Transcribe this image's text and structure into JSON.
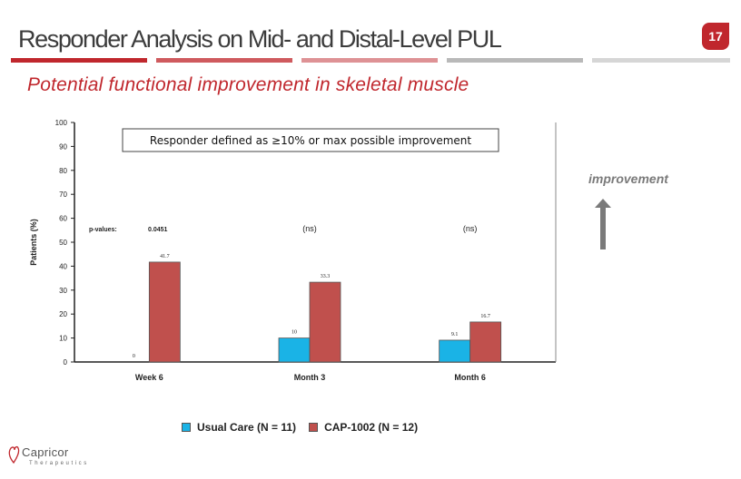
{
  "slide": {
    "title": "Responder Analysis on Mid- and Distal-Level PUL",
    "page_number": "17",
    "subtitle": "Potential functional improvement in skeletal muscle",
    "improvement_label": "improvement",
    "accent_color": "#c0272d"
  },
  "chart_data": {
    "type": "bar",
    "ylabel": "Patients (%)",
    "xlabel": "",
    "ylim": [
      0,
      100
    ],
    "yticks": [
      0,
      10,
      20,
      30,
      40,
      50,
      60,
      70,
      80,
      90,
      100
    ],
    "grid": false,
    "categories": [
      "Week 6",
      "Month 3",
      "Month 6"
    ],
    "series": [
      {
        "name": "Usual Care (N = 11)",
        "color": "#1ab3e6",
        "values": [
          0,
          10,
          9.1
        ],
        "labels": [
          "0",
          "10",
          "9.1"
        ]
      },
      {
        "name": "CAP-1002 (N = 12)",
        "color": "#c0504d",
        "values": [
          41.7,
          33.3,
          16.7
        ],
        "labels": [
          "41.7",
          "33.3",
          "16.7"
        ]
      }
    ],
    "pvalues_label": "p-values:",
    "pvalues": [
      "0.0451",
      "(ns)",
      "(ns)"
    ],
    "annotation": "Responder defined as ≥10% or max possible improvement",
    "legend_position": "bottom"
  },
  "logo": {
    "name": "Capricor",
    "tagline": "Therapeutics"
  }
}
